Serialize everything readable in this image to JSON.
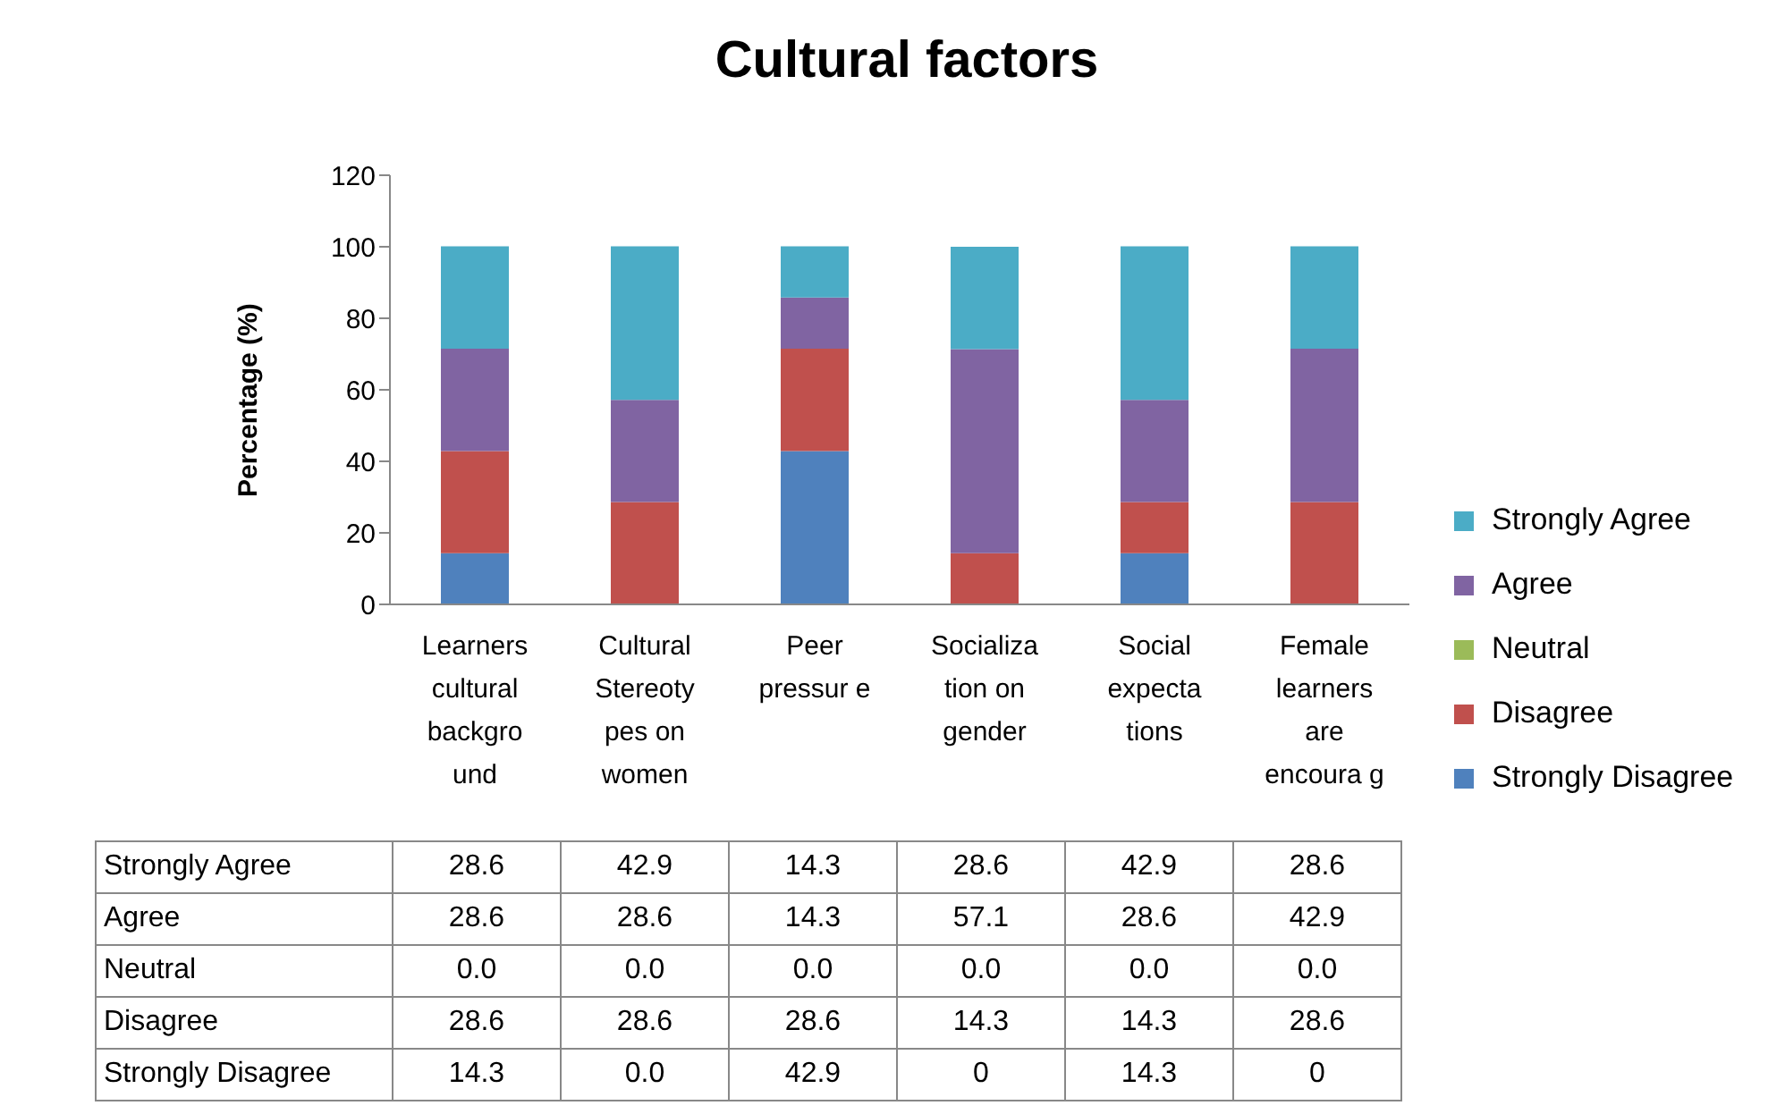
{
  "chart_data": {
    "type": "bar",
    "title": "Cultural factors",
    "ylabel": "Percentage (%)",
    "stacked": true,
    "legend": "right",
    "ylim": [
      0,
      120
    ],
    "yticks": [
      0,
      20,
      40,
      60,
      80,
      100,
      120
    ],
    "categories": [
      "Learners cultural backgro und",
      "Cultural Stereoty pes on women",
      "Peer pressur e",
      "Socializa tion on gender",
      "Social expecta tions",
      "Female learners are encoura g"
    ],
    "series": [
      {
        "name": "Strongly Disagree",
        "color": "#4f81bd",
        "values": [
          14.3,
          0,
          42.9,
          0,
          14.3,
          0
        ],
        "value_labels": [
          "14.3",
          "0.0",
          "42.9",
          "0",
          "14.3",
          "0"
        ]
      },
      {
        "name": "Disagree",
        "color": "#c0504d",
        "values": [
          28.6,
          28.6,
          28.6,
          14.3,
          14.3,
          28.6
        ],
        "value_labels": [
          "28.6",
          "28.6",
          "28.6",
          "14.3",
          "14.3",
          "28.6"
        ]
      },
      {
        "name": "Neutral",
        "color": "#9bbb59",
        "values": [
          0,
          0,
          0,
          0,
          0,
          0
        ],
        "value_labels": [
          "0.0",
          "0.0",
          "0.0",
          "0.0",
          "0.0",
          "0.0"
        ]
      },
      {
        "name": "Agree",
        "color": "#8064a2",
        "values": [
          28.6,
          28.6,
          14.3,
          57.1,
          28.6,
          42.9
        ],
        "value_labels": [
          "28.6",
          "28.6",
          "14.3",
          "57.1",
          "28.6",
          "42.9"
        ]
      },
      {
        "name": "Strongly Agree",
        "color": "#4bacc6",
        "values": [
          28.6,
          42.9,
          14.3,
          28.6,
          42.9,
          28.6
        ],
        "value_labels": [
          "28.6",
          "42.9",
          "14.3",
          "28.6",
          "42.9",
          "28.6"
        ]
      }
    ]
  }
}
